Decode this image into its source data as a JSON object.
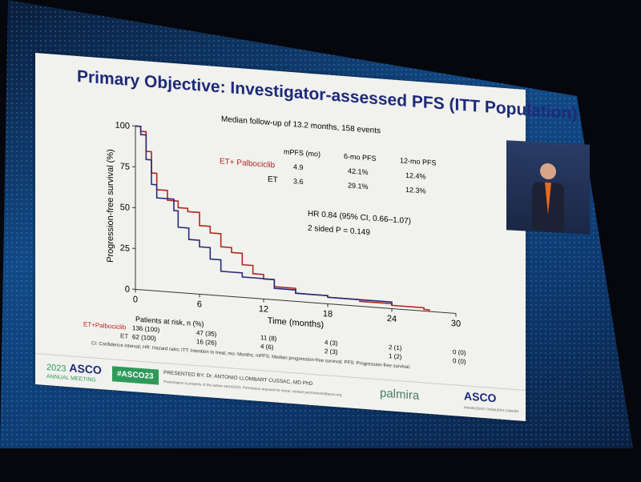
{
  "slide": {
    "title": "Primary Objective: Investigator-assessed PFS (ITT Population)",
    "followup": "Median follow-up of 13.2 months, 158 events",
    "table": {
      "headers": [
        "mPFS (mo)",
        "6-mo PFS",
        "12-mo PFS"
      ],
      "rows": [
        {
          "label": "ET+ Palbociclib",
          "mpfs": "4.9",
          "pfs6": "42.1%",
          "pfs12": "12.4%"
        },
        {
          "label": "ET",
          "mpfs": "3.6",
          "pfs6": "29.1%",
          "pfs12": "12.3%"
        }
      ]
    },
    "hr": "HR 0.84 (95% CI, 0.66–1.07)",
    "p": "2 sided P = 0.149",
    "risk": {
      "title": "Patients at risk, n (%)",
      "rows": [
        {
          "label": "ET+Palbociclib",
          "values": [
            "136 (100)",
            "47 (35)",
            "11 (8)",
            "4 (3)",
            "2 (1)",
            "0 (0)"
          ]
        },
        {
          "label": "ET",
          "values": [
            "62 (100)",
            "16 (26)",
            "4 (6)",
            "2 (3)",
            "1 (2)",
            "0 (0)"
          ]
        }
      ]
    },
    "footnote": "CI: Confidence interval; HR: Hazard ratio; ITT: Intention to treat; mo: Months; mPFS: Median progression-free survival; PFS: Progression-free survival.",
    "footer": {
      "year": "2023",
      "asco": "ASCO",
      "meeting": "ANNUAL MEETING",
      "hashtag": "#ASCO23",
      "presenter": "PRESENTED BY: Dr. ANTONIO LLOMBART CUSSAC, MD PhD",
      "notice": "Presentation is property of the author and ASCO. Permission required for reuse; contact permissions@asco.org.",
      "palmira": "palmira",
      "asco_logo": "ASCO",
      "tagline": "KNOWLEDGE CONQUERS CANCER"
    }
  },
  "colors": {
    "palbo": "#b3261e",
    "et": "#2b2a7a",
    "title": "#1e2a78",
    "hashtag_bg": "#2e9a5a"
  },
  "chart_data": {
    "type": "line",
    "subtype": "kaplan-meier",
    "xlabel": "Time (months)",
    "ylabel": "Progression-free survival (%)",
    "xlim": [
      0,
      30
    ],
    "ylim": [
      0,
      100
    ],
    "xticks": [
      0,
      6,
      12,
      18,
      24,
      30
    ],
    "yticks": [
      0,
      25,
      50,
      75,
      100
    ],
    "series": [
      {
        "name": "ET+ Palbociclib",
        "x": [
          0,
          0.5,
          1,
          1.5,
          2,
          3,
          4,
          4.9,
          6,
          7,
          8,
          9,
          10,
          11,
          12,
          13,
          15,
          18,
          21,
          24,
          27,
          27.5
        ],
        "y": [
          100,
          97,
          85,
          72,
          62,
          56,
          52,
          50,
          42,
          38,
          30,
          27,
          20,
          15,
          12.4,
          8,
          5,
          4,
          3,
          2,
          1,
          0
        ]
      },
      {
        "name": "ET",
        "x": [
          0,
          0.5,
          1,
          1.5,
          2,
          3.6,
          4,
          5,
          6,
          7,
          8,
          10,
          12,
          13,
          15,
          18,
          24
        ],
        "y": [
          100,
          95,
          80,
          65,
          57,
          50,
          40,
          33,
          29,
          22,
          15,
          12.5,
          12.3,
          7,
          5,
          4,
          2
        ]
      }
    ]
  }
}
